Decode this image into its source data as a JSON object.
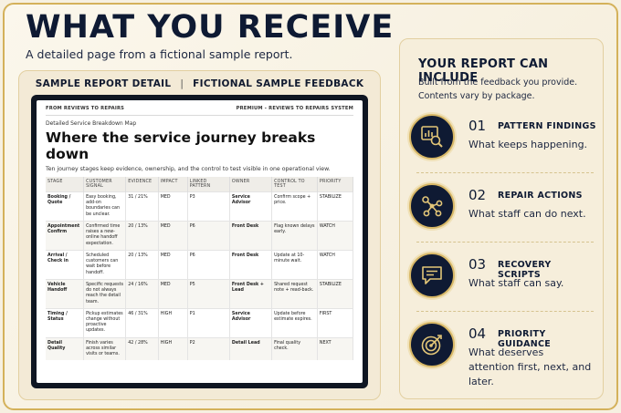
{
  "title": "WHAT YOU RECEIVE",
  "subtitle": "A detailed page from a fictional sample report.",
  "left_panel": {
    "header_left": "SAMPLE REPORT DETAIL",
    "separator": "|",
    "header_right": "FICTIONAL SAMPLE FEEDBACK"
  },
  "doc": {
    "brand": "FROM REVIEWS TO REPAIRS",
    "edition": "PREMIUM - REVIEWS TO REPAIRS SYSTEM",
    "kicker": "Detailed Service Breakdown Map",
    "heading": "Where the service journey breaks down",
    "description": "Ten journey stages keep evidence, ownership, and the control to test visible in one operational view.",
    "columns": [
      "STAGE",
      "CUSTOMER SIGNAL",
      "EVIDENCE",
      "IMPACT",
      "LINKED PATTERN",
      "OWNER",
      "CONTROL TO TEST",
      "PRIORITY"
    ],
    "rows": [
      {
        "stage": "Booking / Quote",
        "signal": "Easy booking, add-on boundaries can be unclear.",
        "evidence": "31 / 21%",
        "impact": "MED",
        "pattern": "P3",
        "owner": "Service Advisor",
        "control": "Confirm scope + price.",
        "priority": "STABILIZE"
      },
      {
        "stage": "Appointment Confirm",
        "signal": "Confirmed time raises a new-online handoff expectation.",
        "evidence": "20 / 13%",
        "impact": "MED",
        "pattern": "P6",
        "owner": "Front Desk",
        "control": "Flag known delays early.",
        "priority": "WATCH"
      },
      {
        "stage": "Arrival / Check in",
        "signal": "Scheduled customers can wait before handoff.",
        "evidence": "20 / 13%",
        "impact": "MED",
        "pattern": "P6",
        "owner": "Front Desk",
        "control": "Update at 10-minute wait.",
        "priority": "WATCH"
      },
      {
        "stage": "Vehicle Handoff",
        "signal": "Specific requests do not always reach the detail team.",
        "evidence": "24 / 16%",
        "impact": "MED",
        "pattern": "P5",
        "owner": "Front Desk + Lead",
        "control": "Shared request note + read-back.",
        "priority": "STABILIZE"
      },
      {
        "stage": "Timing / Status",
        "signal": "Pickup estimates change without proactive updates.",
        "evidence": "46 / 31%",
        "impact": "HIGH",
        "pattern": "P1",
        "owner": "Service Advisor",
        "control": "Update before estimate expires.",
        "priority": "FIRST"
      },
      {
        "stage": "Detail Quality",
        "signal": "Finish varies across similar visits or teams.",
        "evidence": "42 / 28%",
        "impact": "HIGH",
        "pattern": "P2",
        "owner": "Detail Lead",
        "control": "Final quality check.",
        "priority": "NEXT"
      }
    ]
  },
  "right_panel": {
    "title": "YOUR REPORT CAN INCLUDE",
    "line1": "Built from the feedback you provide.",
    "line2": "Contents vary by package.",
    "features": [
      {
        "num": "01",
        "title": "PATTERN FINDINGS",
        "desc": "What keeps happening.",
        "icon": "chart-magnifier-icon"
      },
      {
        "num": "02",
        "title": "REPAIR ACTIONS",
        "desc": "What staff can do next.",
        "icon": "network-nodes-icon"
      },
      {
        "num": "03",
        "title": "RECOVERY SCRIPTS",
        "desc": "What staff can say.",
        "icon": "chat-bubble-icon"
      },
      {
        "num": "04",
        "title": "PRIORITY GUIDANCE",
        "desc": "What deserves attention first, next, and later.",
        "icon": "target-arrow-icon"
      }
    ]
  },
  "colors": {
    "navy": "#0f1a33",
    "gold": "#d8b867",
    "background": "#f6f0e1"
  }
}
